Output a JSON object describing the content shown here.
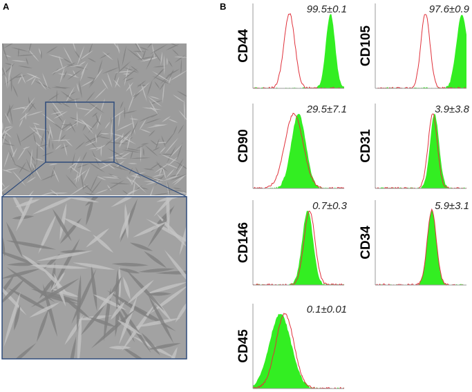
{
  "panel_a": {
    "label": "A"
  },
  "panel_b": {
    "label": "B",
    "histograms": [
      {
        "marker": "CD44",
        "value": "99.5±0.1"
      },
      {
        "marker": "CD105",
        "value": "97.6±0.9"
      },
      {
        "marker": "CD90",
        "value": "29.5±7.1"
      },
      {
        "marker": "CD31",
        "value": "3.9±3.8"
      },
      {
        "marker": "CD146",
        "value": "0.7±0.3"
      },
      {
        "marker": "CD34",
        "value": "5.9±3.1"
      },
      {
        "marker": "CD45",
        "value": "0.1±0.01"
      }
    ]
  }
}
